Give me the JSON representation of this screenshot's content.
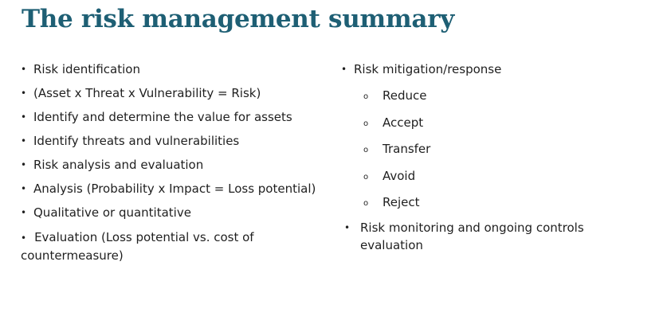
{
  "slide": {
    "title": "The risk management summary",
    "bullet_glyph": "•",
    "sub_bullet_glyph": "o",
    "left_items": [
      "Risk identification",
      "(Asset x Threat x Vulnerability = Risk)",
      "Identify and determine the value for assets",
      "Identify threats and vulnerabilities",
      "Risk analysis and evaluation",
      "Analysis (Probability x Impact = Loss potential)",
      "Qualitative or quantitative"
    ],
    "evaluation_item": "Evaluation (Loss potential vs. cost of countermeasure)",
    "right_heading": "Risk mitigation/response",
    "right_subitems": [
      "Reduce",
      "Accept",
      "Transfer",
      "Avoid",
      "Reject"
    ],
    "monitoring_item": "Risk monitoring and ongoing controls evaluation",
    "colors": {
      "title": "#1e5f74",
      "text": "#1f1f1f",
      "background": "#ffffff"
    }
  }
}
